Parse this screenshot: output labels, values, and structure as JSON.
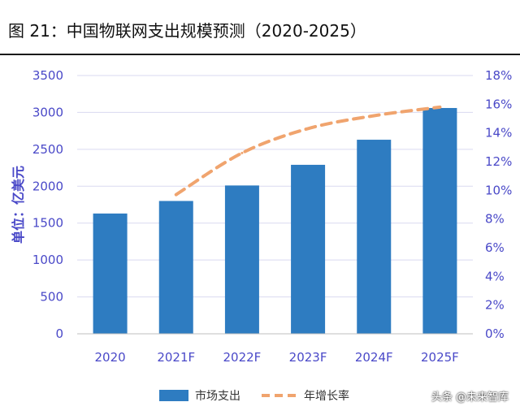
{
  "figure_title": "图 21：中国物联网支出规模预测（2020-2025）",
  "watermark": "头条 @未来智库",
  "colors": {
    "bar": "#2e7cc1",
    "line": "#f0a46e",
    "axis_text": "#4a49c8",
    "grid": "#d9d9f0"
  },
  "chart_data": {
    "type": "bar",
    "categories": [
      "2020",
      "2021F",
      "2022F",
      "2023F",
      "2024F",
      "2025F"
    ],
    "ylabel": "单位：亿美元",
    "ylim": [
      0,
      3500
    ],
    "y_ticks": [
      "0",
      "500",
      "1000",
      "1500",
      "2000",
      "2500",
      "3000",
      "3500"
    ],
    "y2lim": [
      0,
      18
    ],
    "y2_ticks": [
      "0%",
      "2%",
      "4%",
      "6%",
      "8%",
      "10%",
      "12%",
      "14%",
      "16%",
      "18%"
    ],
    "grid": true,
    "legend_position": "bottom",
    "series": [
      {
        "name": "市场支出",
        "type": "bar",
        "axis": "left",
        "values": [
          1630,
          1800,
          2010,
          2290,
          2630,
          3060
        ]
      },
      {
        "name": "年增长率",
        "type": "line",
        "style": "dashed",
        "axis": "right",
        "values": [
          null,
          9.7,
          12.6,
          14.3,
          15.2,
          15.8
        ]
      }
    ]
  }
}
